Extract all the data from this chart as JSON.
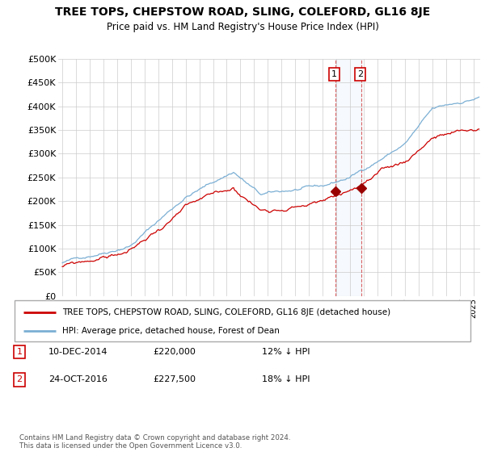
{
  "title": "TREE TOPS, CHEPSTOW ROAD, SLING, COLEFORD, GL16 8JE",
  "subtitle": "Price paid vs. HM Land Registry's House Price Index (HPI)",
  "legend_line1": "TREE TOPS, CHEPSTOW ROAD, SLING, COLEFORD, GL16 8JE (detached house)",
  "legend_line2": "HPI: Average price, detached house, Forest of Dean",
  "transaction1_date": "10-DEC-2014",
  "transaction1_price": "£220,000",
  "transaction1_hpi": "12% ↓ HPI",
  "transaction2_date": "24-OCT-2016",
  "transaction2_price": "£227,500",
  "transaction2_hpi": "18% ↓ HPI",
  "footer": "Contains HM Land Registry data © Crown copyright and database right 2024.\nThis data is licensed under the Open Government Licence v3.0.",
  "hpi_color": "#7bafd4",
  "price_color": "#cc0000",
  "marker_color": "#990000",
  "ylim": [
    0,
    500000
  ],
  "yticks": [
    0,
    50000,
    100000,
    150000,
    200000,
    250000,
    300000,
    350000,
    400000,
    450000,
    500000
  ],
  "ytick_labels": [
    "£0",
    "£50K",
    "£100K",
    "£150K",
    "£200K",
    "£250K",
    "£300K",
    "£350K",
    "£400K",
    "£450K",
    "£500K"
  ],
  "xlim_start": 1994.7,
  "xlim_end": 2025.5,
  "transaction1_x": 2014.94,
  "transaction2_x": 2016.81,
  "transaction1_y": 220000,
  "transaction2_y": 227500,
  "highlight_x1": 2014.94,
  "highlight_x2": 2016.81,
  "background_color": "#ffffff",
  "grid_color": "#cccccc"
}
